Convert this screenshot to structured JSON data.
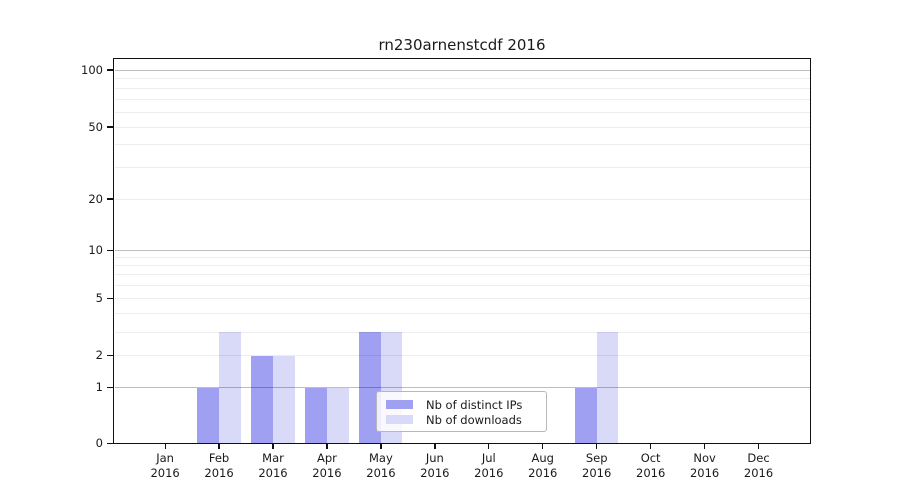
{
  "chart_data": {
    "type": "bar",
    "title": "rn230arnenstcdf 2016",
    "categories": [
      "Jan",
      "Feb",
      "Mar",
      "Apr",
      "May",
      "Jun",
      "Jul",
      "Aug",
      "Sep",
      "Oct",
      "Nov",
      "Dec"
    ],
    "year": "2016",
    "series": [
      {
        "name": "Nb of distinct IPs",
        "color": "#a0a0f2",
        "values": [
          0,
          1,
          2,
          1,
          3,
          0,
          0,
          0,
          1,
          0,
          0,
          0
        ]
      },
      {
        "name": "Nb of downloads",
        "color": "#d9d9f8",
        "values": [
          0,
          3,
          2,
          1,
          3,
          0,
          0,
          0,
          3,
          0,
          0,
          0
        ]
      }
    ],
    "xlabel": "",
    "ylabel": "",
    "yscale": "log",
    "ytick_values": [
      0,
      1,
      2,
      5,
      10,
      20,
      50,
      100
    ],
    "ytick_labels": [
      "0",
      "1",
      "2",
      "5",
      "10",
      "20",
      "50",
      "100"
    ],
    "ylim": [
      0,
      115
    ],
    "grid": true,
    "legend_position": "lower center-right inside plot",
    "colors": {
      "background": "#ffffff",
      "spine": "#111111",
      "major_grid": "#bdbdbd",
      "minor_grid": "#ececec",
      "text": "#1a1a1a"
    }
  }
}
